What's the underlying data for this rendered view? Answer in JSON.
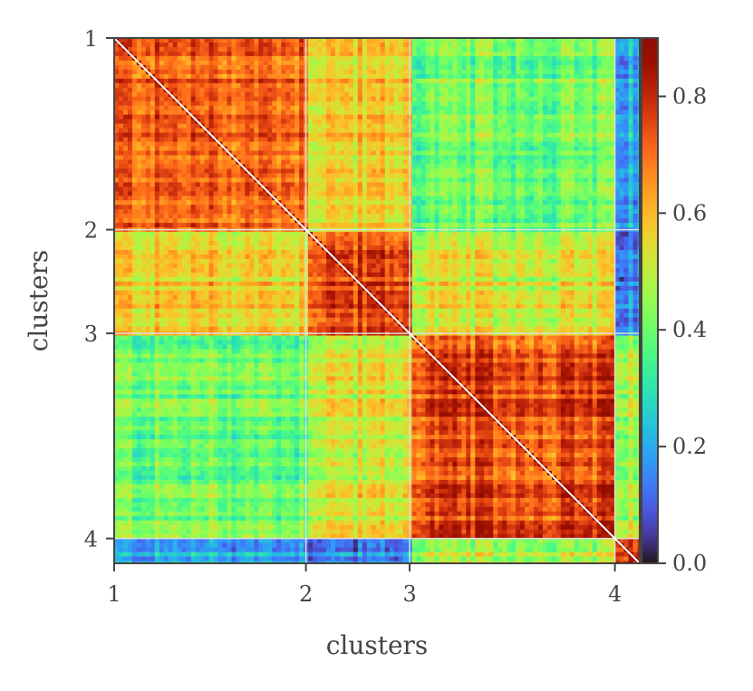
{
  "chart_data": {
    "type": "heatmap",
    "xlabel": "clusters",
    "ylabel": "clusters",
    "cluster_labels": [
      "1",
      "2",
      "3",
      "4"
    ],
    "cluster_sizes": [
      170,
      92,
      182,
      22
    ],
    "mean_similarity": [
      [
        0.72,
        0.57,
        0.4,
        0.2
      ],
      [
        0.57,
        0.75,
        0.52,
        0.15
      ],
      [
        0.4,
        0.52,
        0.74,
        0.47
      ],
      [
        0.2,
        0.15,
        0.47,
        0.8
      ]
    ],
    "diagonal_value": 1.0,
    "colormap": "turbo",
    "colorbar": {
      "min": 0.0,
      "max": 0.9,
      "ticks": [
        0.0,
        0.2,
        0.4,
        0.6,
        0.8
      ],
      "tick_labels": [
        "0.0",
        "0.2",
        "0.4",
        "0.6",
        "0.8"
      ]
    },
    "boundary_lines": true,
    "boundary_line_color": "#dddddd"
  }
}
